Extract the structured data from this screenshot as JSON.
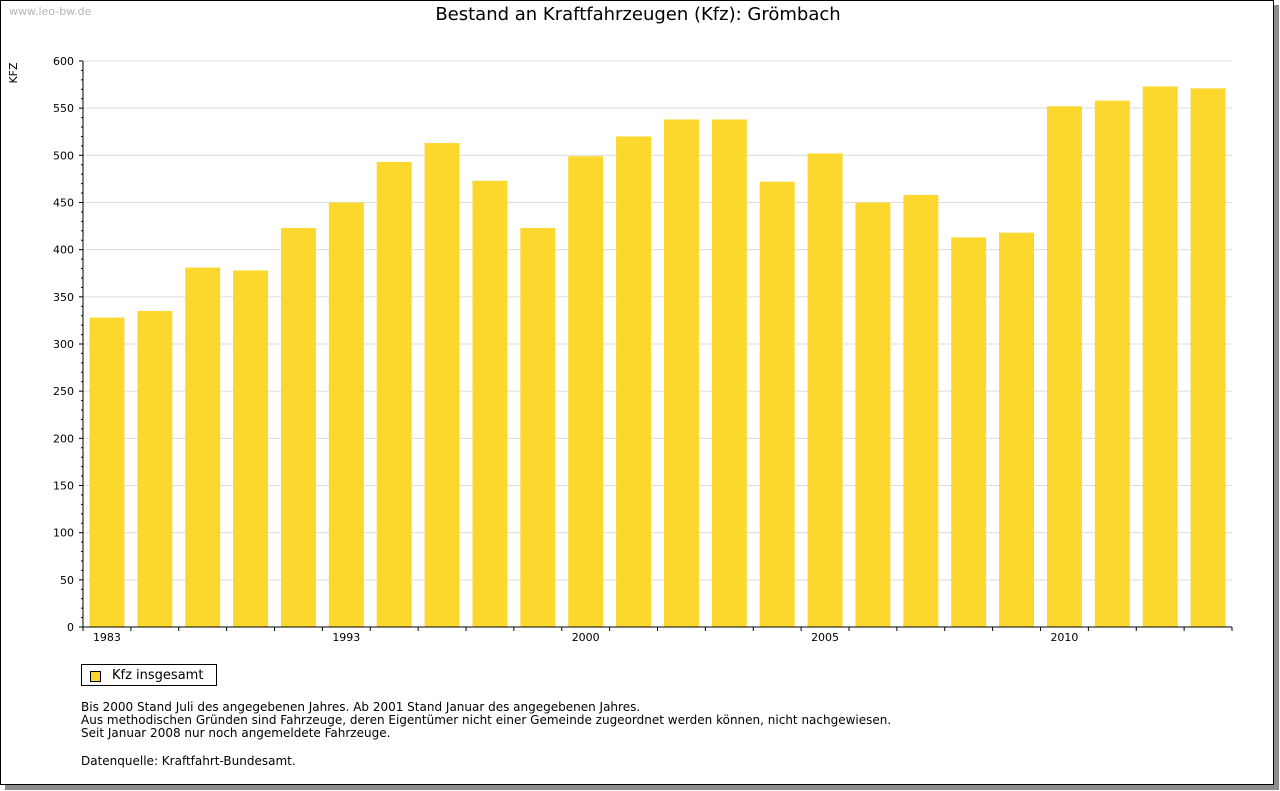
{
  "watermark": "www.leo-bw.de",
  "chart_data": {
    "type": "bar",
    "title": "Bestand an Kraftfahrzeugen (Kfz): Grömbach",
    "xlabel": "",
    "ylabel": "KFZ",
    "ylim": [
      0,
      600
    ],
    "yticks": [
      0,
      50,
      100,
      150,
      200,
      250,
      300,
      350,
      400,
      450,
      500,
      550,
      600
    ],
    "grid": true,
    "categories": [
      "1983",
      "1988",
      "1989",
      "1990",
      "1991",
      "1993",
      "1994",
      "1995",
      "1996",
      "1997",
      "2000",
      "2001",
      "2002",
      "2003",
      "2004",
      "2005",
      "2006",
      "2007",
      "2008",
      "2009",
      "2010",
      "2011",
      "2012",
      "2013"
    ],
    "xtick_labels": [
      "1983",
      "1993",
      "2000",
      "2005",
      "2010"
    ],
    "series": [
      {
        "name": "Kfz insgesamt",
        "color": "#fcd72d",
        "values": [
          328,
          335,
          381,
          378,
          423,
          450,
          493,
          513,
          473,
          423,
          499,
          520,
          538,
          538,
          472,
          502,
          450,
          458,
          413,
          418,
          552,
          558,
          573,
          571
        ]
      }
    ],
    "legend_position": "bottom-left"
  },
  "legend": {
    "label": "Kfz insgesamt"
  },
  "notes": [
    "Bis 2000 Stand Juli des angegebenen Jahres. Ab 2001 Stand Januar des angegebenen Jahres.",
    "Aus methodischen Gründen sind Fahrzeuge, deren Eigentümer nicht einer Gemeinde zugeordnet werden können, nicht nachgewiesen.",
    "Seit Januar 2008 nur noch angemeldete Fahrzeuge."
  ],
  "source": "Datenquelle: Kraftfahrt-Bundesamt."
}
